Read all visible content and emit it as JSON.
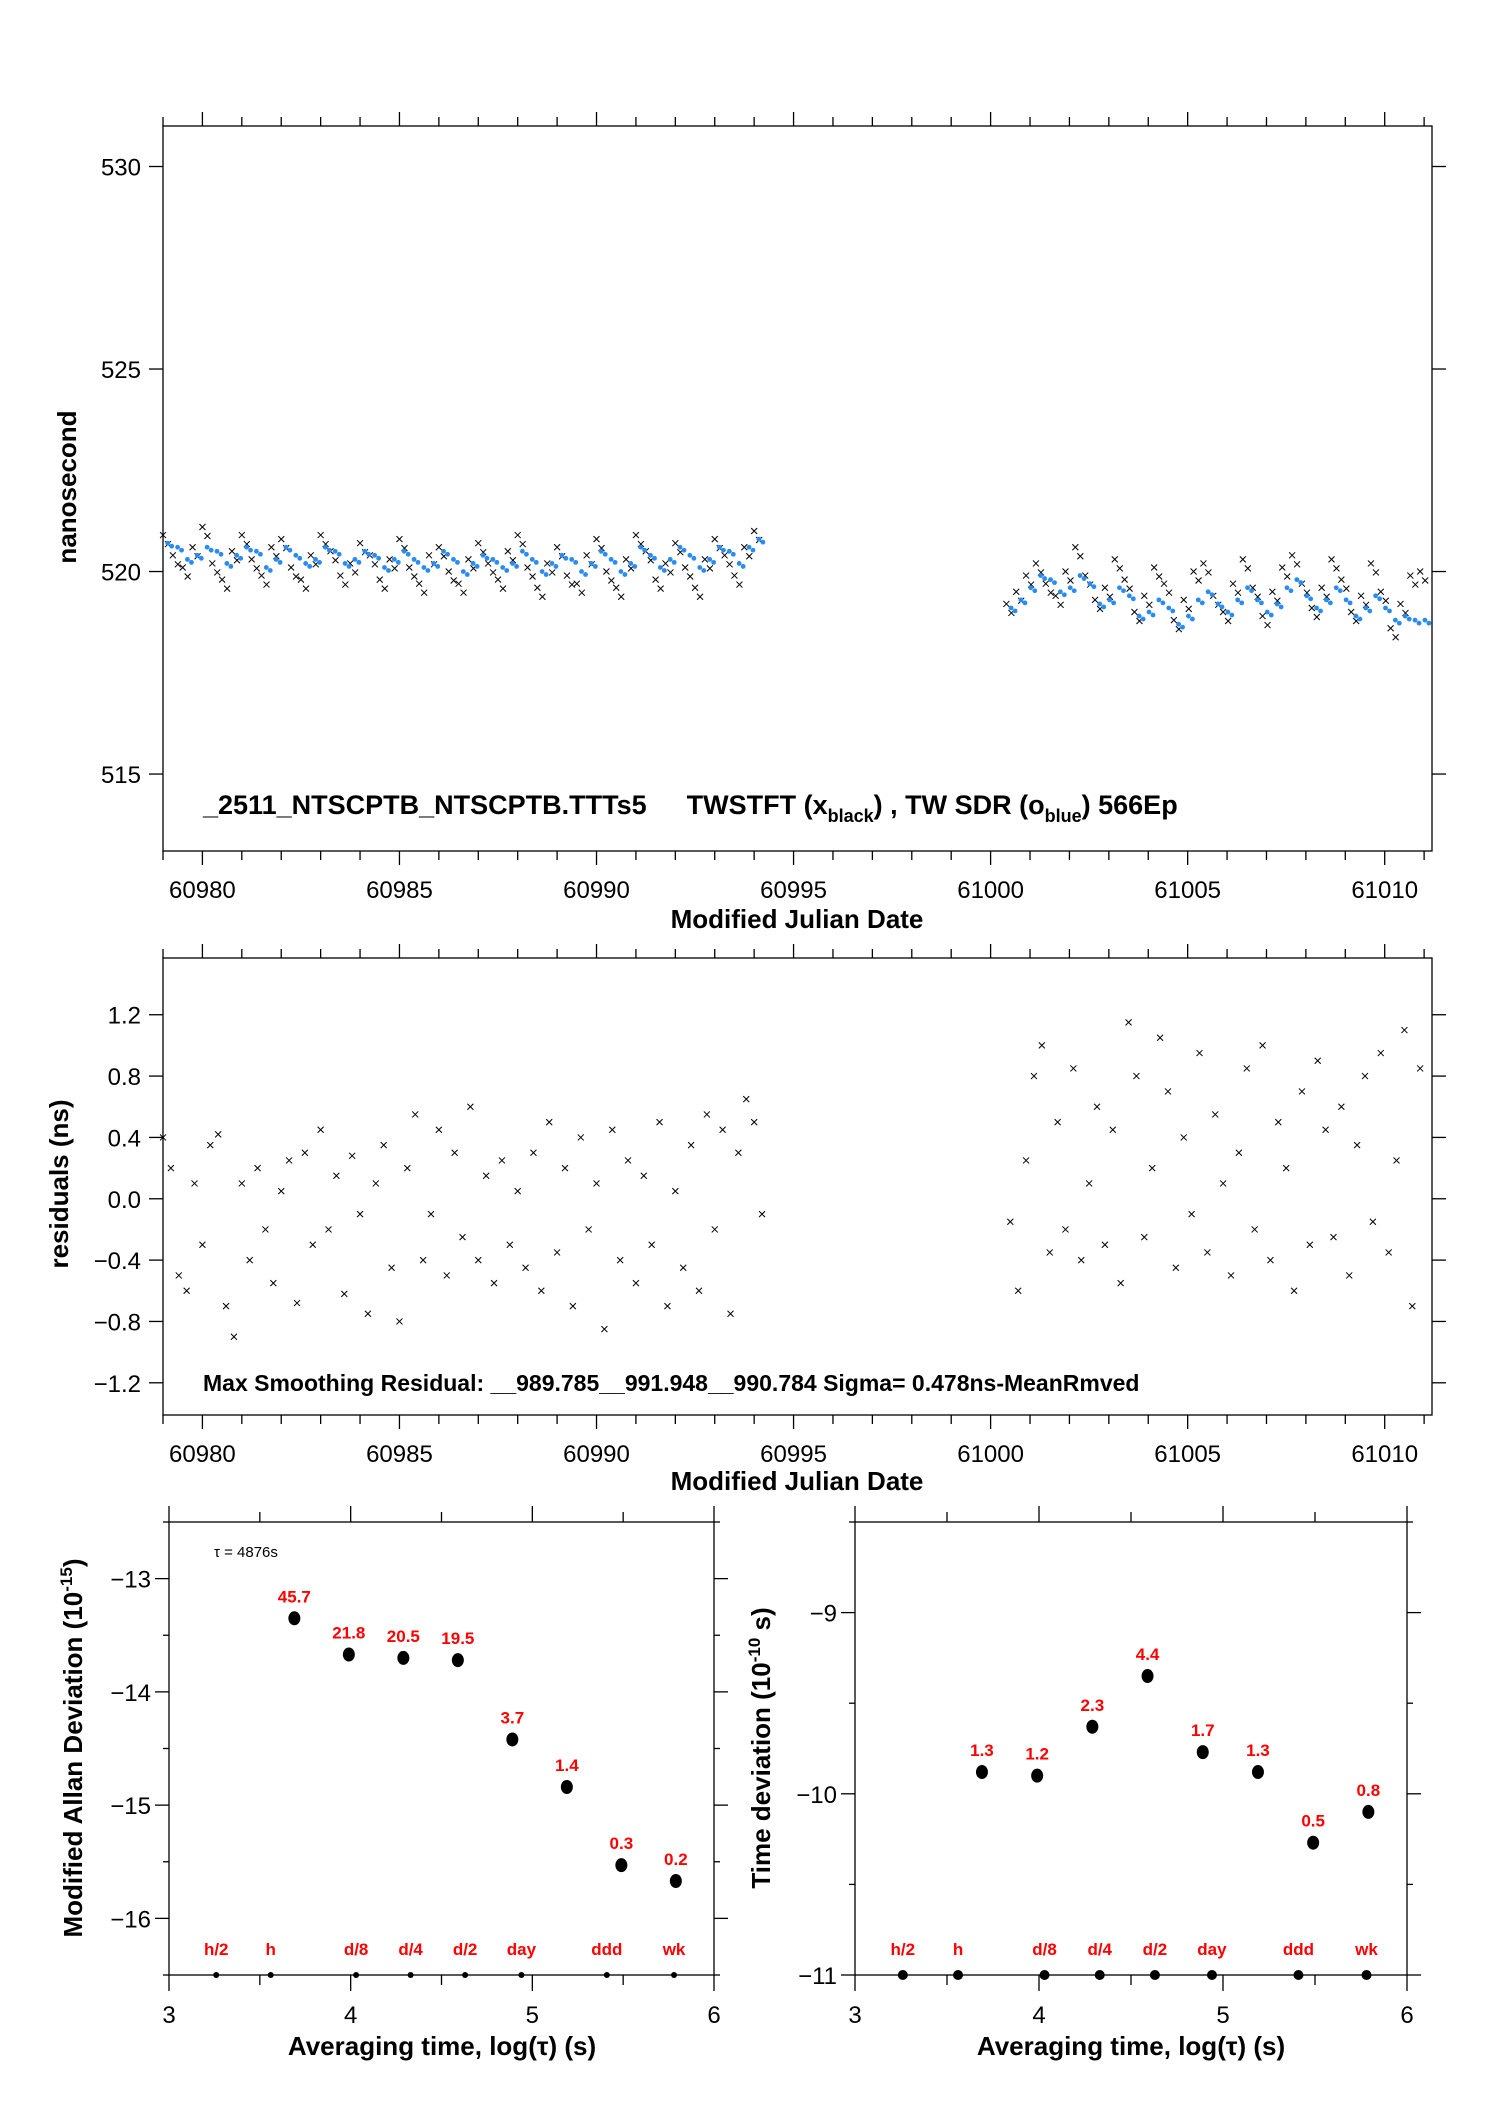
{
  "chart_data": [
    {
      "type": "scatter",
      "title": "_2511_NTSCPTB_NTSCPTB.TTTs5",
      "legend_text": "TWSTFT (x",
      "legend_sub1": "black",
      "legend_mid": ") ,  TW SDR (o",
      "legend_sub2": "blue",
      "legend_end": ")  566Ep",
      "xlabel": "Modified Julian Date",
      "ylabel": "nanosecond",
      "xlim": [
        60979,
        61011.2
      ],
      "ylim": [
        513.1,
        531
      ],
      "xticks": [
        "60980",
        "60985",
        "60990",
        "60995",
        "61000",
        "61005",
        "61010"
      ],
      "yticks": [
        "515",
        "520",
        "525",
        "530"
      ],
      "series": [
        {
          "name": "TWSTFT",
          "color": "#000000",
          "marker": "x",
          "segments": [
            {
              "x_start": 60979,
              "x_step": 0.25,
              "y": [
                520.9,
                520.4,
                520.1,
                520.6,
                521.1,
                520.2,
                519.8,
                520.5,
                520.9,
                520.3,
                519.9,
                520.6,
                520.8,
                520.1,
                519.8,
                520.4,
                520.9,
                520.5,
                519.9,
                520.2,
                520.7,
                520.4,
                519.8,
                520.3,
                520.8,
                520.1,
                519.7,
                520.4,
                520.6,
                520.0,
                519.7,
                520.3,
                520.7,
                520.2,
                519.8,
                520.5,
                520.9,
                520.1,
                519.6,
                520.2,
                520.6,
                519.9,
                519.7,
                520.4,
                520.8,
                520.0,
                519.6,
                520.3,
                520.9,
                520.5,
                519.8,
                520.2,
                520.7,
                520.1,
                519.6,
                520.3,
                520.8,
                520.4,
                519.9,
                520.6,
                521.0
              ]
            },
            {
              "x_start": 61000.4,
              "x_step": 0.25,
              "y": [
                519.2,
                519.5,
                519.9,
                520.2,
                519.7,
                519.4,
                520.0,
                520.6,
                519.9,
                519.3,
                519.6,
                520.3,
                519.8,
                519.0,
                519.4,
                520.1,
                519.7,
                518.8,
                519.3,
                520.0,
                520.2,
                519.4,
                519.0,
                519.7,
                520.3,
                519.6,
                518.9,
                519.5,
                520.1,
                520.4,
                519.7,
                519.1,
                519.6,
                520.3,
                519.8,
                519.0,
                519.4,
                520.2,
                519.5,
                518.6,
                519.2,
                519.9,
                520.0
              ]
            }
          ]
        },
        {
          "name": "TW SDR",
          "color": "#2a8cf0",
          "marker": "o",
          "segments": [
            {
              "x_start": 60979.12,
              "x_step": 0.25,
              "y": [
                520.7,
                520.6,
                520.3,
                520.4,
                520.6,
                520.5,
                520.2,
                520.4,
                520.6,
                520.5,
                520.1,
                520.3,
                520.6,
                520.4,
                520.2,
                520.3,
                520.6,
                520.5,
                520.2,
                520.3,
                520.5,
                520.4,
                520.1,
                520.3,
                520.5,
                520.3,
                520.1,
                520.2,
                520.5,
                520.3,
                520.0,
                520.2,
                520.4,
                520.3,
                520.1,
                520.2,
                520.5,
                520.3,
                520.0,
                520.2,
                520.4,
                520.3,
                520.0,
                520.2,
                520.5,
                520.3,
                520.0,
                520.2,
                520.6,
                520.4,
                520.1,
                520.3,
                520.6,
                520.4,
                520.1,
                520.3,
                520.6,
                520.5,
                520.2,
                520.6,
                520.8
              ]
            },
            {
              "x_start": 61000.52,
              "x_step": 0.25,
              "y": [
                519.1,
                519.3,
                519.6,
                519.9,
                519.8,
                519.5,
                519.6,
                519.9,
                519.7,
                519.2,
                519.3,
                519.6,
                519.4,
                518.9,
                519.0,
                519.3,
                519.1,
                518.7,
                518.9,
                519.3,
                519.5,
                519.2,
                519.0,
                519.3,
                519.6,
                519.3,
                519.0,
                519.2,
                519.6,
                519.8,
                519.4,
                519.1,
                519.3,
                519.6,
                519.3,
                518.9,
                519.1,
                519.4,
                519.1,
                518.8,
                518.9,
                518.8,
                518.8
              ]
            }
          ]
        }
      ]
    },
    {
      "type": "scatter",
      "annotation": "Max Smoothing Residual: __989.785__991.948__990.784  Sigma= 0.478ns-MeanRmved",
      "xlabel": "Modified Julian Date",
      "ylabel": "residuals (ns)",
      "xlim": [
        60979,
        61011.2
      ],
      "ylim": [
        -1.41,
        1.57
      ],
      "xticks": [
        "60980",
        "60985",
        "60990",
        "60995",
        "61000",
        "61005",
        "61010"
      ],
      "yticks": [
        "−1.2",
        "−0.8",
        "−0.4",
        "0.0",
        "0.4",
        "0.8",
        "1.2"
      ],
      "ytick_values": [
        -1.2,
        -0.8,
        -0.4,
        0,
        0.4,
        0.8,
        1.2
      ],
      "series": [
        {
          "name": "residuals",
          "color": "#000000",
          "marker": "x",
          "segments": [
            {
              "x_start": 60979,
              "x_step": 0.2,
              "y": [
                0.4,
                0.2,
                -0.5,
                -0.6,
                0.1,
                -0.3,
                0.35,
                0.42,
                -0.7,
                -0.9,
                0.1,
                -0.4,
                0.2,
                -0.2,
                -0.55,
                0.05,
                0.25,
                -0.68,
                0.3,
                -0.3,
                0.45,
                -0.2,
                0.15,
                -0.62,
                0.28,
                -0.1,
                -0.75,
                0.1,
                0.35,
                -0.45,
                -0.8,
                0.2,
                0.55,
                -0.4,
                -0.1,
                0.45,
                -0.5,
                0.3,
                -0.25,
                0.6,
                -0.4,
                0.15,
                -0.55,
                0.25,
                -0.3,
                0.05,
                -0.45,
                0.3,
                -0.6,
                0.5,
                -0.35,
                0.2,
                -0.7,
                0.4,
                -0.2,
                0.1,
                -0.85,
                0.45,
                -0.4,
                0.25,
                -0.55,
                0.15,
                -0.3,
                0.5,
                -0.7,
                0.05,
                -0.45,
                0.35,
                -0.6,
                0.55,
                -0.2,
                0.45,
                -0.75,
                0.3,
                0.65,
                0.5,
                -0.1
              ]
            },
            {
              "x_start": 61000.5,
              "x_step": 0.2,
              "y": [
                -0.15,
                -0.6,
                0.25,
                0.8,
                1.0,
                -0.35,
                0.5,
                -0.2,
                0.85,
                -0.4,
                0.1,
                0.6,
                -0.3,
                0.45,
                -0.55,
                1.15,
                0.8,
                -0.25,
                0.2,
                1.05,
                0.7,
                -0.45,
                0.4,
                -0.1,
                0.95,
                -0.35,
                0.55,
                0.1,
                -0.5,
                0.3,
                0.85,
                -0.2,
                1.0,
                -0.4,
                0.5,
                0.2,
                -0.6,
                0.7,
                -0.3,
                0.9,
                0.45,
                -0.25,
                0.6,
                -0.5,
                0.35,
                0.8,
                -0.15,
                0.95,
                -0.35,
                0.25,
                1.1,
                -0.7,
                0.85
              ]
            }
          ]
        }
      ]
    },
    {
      "type": "scatter",
      "annotation": "τ = 4876s",
      "xlabel": "Averaging time, log(τ) (s)",
      "ylabel": "Modified Allan Deviation (10",
      "ylabel_sup": "-15",
      "ylabel_end": ")",
      "xlim": [
        3,
        6
      ],
      "ylim": [
        -16.5,
        -12.5
      ],
      "xticks": [
        "3",
        "4",
        "5",
        "6"
      ],
      "yticks": [
        "−16",
        "−15",
        "−14",
        "−13"
      ],
      "ytick_values": [
        -16,
        -15,
        -14,
        -13
      ],
      "points": {
        "x": [
          3.69,
          3.99,
          4.29,
          4.59,
          4.89,
          5.19,
          5.49,
          5.79
        ],
        "y": [
          -13.35,
          -13.67,
          -13.7,
          -13.72,
          -14.42,
          -14.84,
          -15.53,
          -15.67
        ],
        "labels": [
          "45.7",
          "21.8",
          "20.5",
          "19.5",
          "3.7",
          "1.4",
          "0.3",
          "0.2"
        ]
      },
      "markers": {
        "x": [
          3.26,
          3.56,
          4.03,
          4.33,
          4.63,
          4.94,
          5.41,
          5.78
        ],
        "labels": [
          "h/2",
          "h",
          "d/8",
          "d/4",
          "d/2",
          "day",
          "ddd",
          "wk"
        ]
      }
    },
    {
      "type": "scatter",
      "xlabel": "Averaging time, log(τ) (s)",
      "ylabel": "Time deviation (10",
      "ylabel_sup": "-10",
      "ylabel_end": " s)",
      "xlim": [
        3,
        6
      ],
      "ylim": [
        -11,
        -8.5
      ],
      "xticks": [
        "3",
        "4",
        "5",
        "6"
      ],
      "yticks": [
        "−11",
        "−10",
        "−9"
      ],
      "ytick_values": [
        -11,
        -10,
        -9
      ],
      "points": {
        "x": [
          3.69,
          3.99,
          4.29,
          4.59,
          4.89,
          5.19,
          5.49,
          5.79
        ],
        "y": [
          -9.88,
          -9.9,
          -9.63,
          -9.35,
          -9.77,
          -9.88,
          -10.27,
          -10.1
        ],
        "labels": [
          "1.3",
          "1.2",
          "2.3",
          "4.4",
          "1.7",
          "1.3",
          "0.5",
          "0.8"
        ]
      },
      "markers": {
        "x": [
          3.26,
          3.56,
          4.03,
          4.33,
          4.63,
          4.94,
          5.41,
          5.78
        ],
        "labels": [
          "h/2",
          "h",
          "d/8",
          "d/4",
          "d/2",
          "day",
          "ddd",
          "wk"
        ]
      }
    }
  ]
}
